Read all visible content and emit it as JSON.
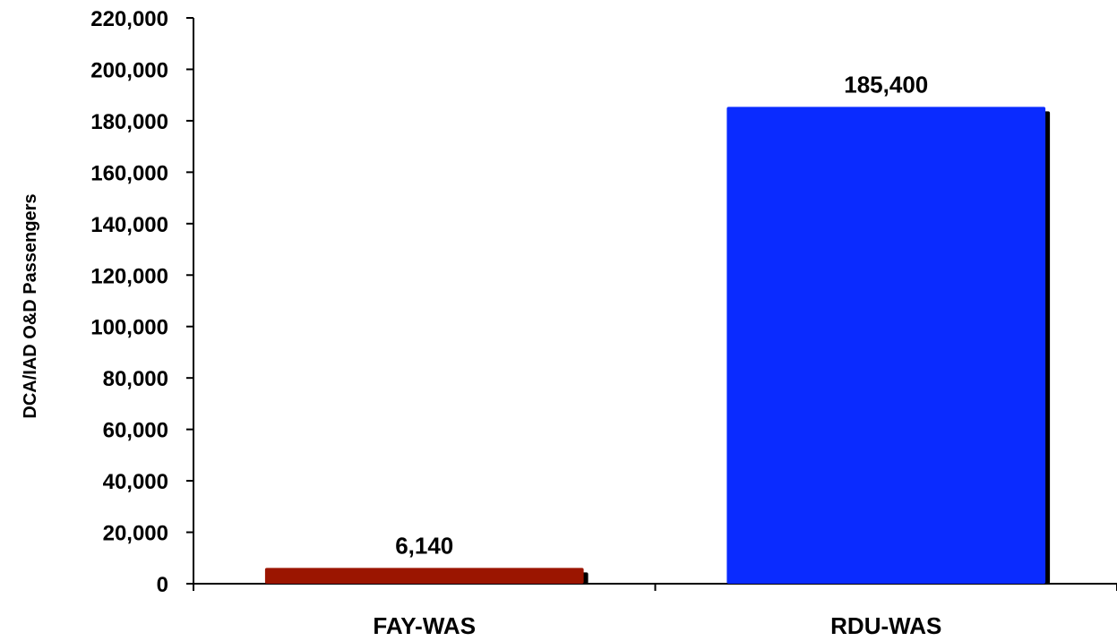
{
  "chart_data": {
    "type": "bar",
    "title": "",
    "xlabel": "",
    "ylabel": "DCA/IAD O&D Passengers",
    "categories": [
      "FAY-WAS",
      "RDU-WAS"
    ],
    "values": [
      6140,
      185400
    ],
    "data_labels": [
      "6,140",
      "185,400"
    ],
    "colors": [
      "#9B1500",
      "#0A2BFF"
    ],
    "ylim": [
      0,
      220000
    ],
    "yticks": [
      0,
      20000,
      40000,
      60000,
      80000,
      100000,
      120000,
      140000,
      160000,
      180000,
      200000,
      220000
    ],
    "ytick_labels": [
      "0",
      "20,000",
      "40,000",
      "60,000",
      "80,000",
      "100,000",
      "120,000",
      "140,000",
      "160,000",
      "180,000",
      "200,000",
      "220,000"
    ],
    "grid": false,
    "legend": "none"
  }
}
